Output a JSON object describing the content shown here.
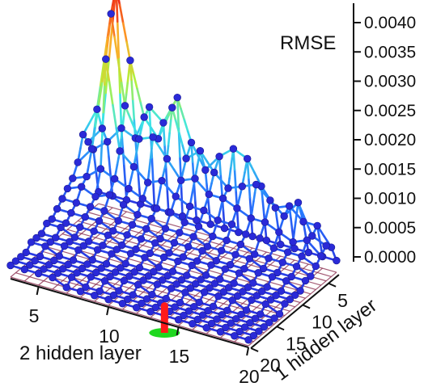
{
  "chart_data": {
    "type": "surface3d",
    "xlabel": "2 hidden layer",
    "ylabel": "1 hidden layer",
    "zlabel": "RMSE",
    "x_ticks": [
      "5",
      "10",
      "15",
      "20"
    ],
    "y_ticks": [
      "5",
      "10",
      "15",
      "20"
    ],
    "z_ticks": [
      "0.0000",
      "0.0005",
      "0.0010",
      "0.0015",
      "0.0020",
      "0.0025",
      "0.0030",
      "0.0035",
      "0.0040"
    ],
    "x_values": [
      3,
      4,
      5,
      6,
      7,
      8,
      9,
      10,
      11,
      12,
      13,
      14,
      15,
      16,
      17,
      18,
      19,
      20
    ],
    "y_values": [
      3,
      4,
      5,
      6,
      7,
      8,
      9,
      10,
      11,
      12,
      13,
      14,
      15,
      16,
      17,
      18,
      19,
      20
    ],
    "xlim": [
      3,
      20
    ],
    "ylim": [
      3,
      20
    ],
    "zlim": [
      0,
      0.004
    ],
    "rmse_grid": [
      [
        0.0002,
        0.0002,
        0.0002,
        0.0002,
        0.0002,
        0.0002,
        0.0002,
        0.0002,
        0.0002,
        0.0002,
        0.0002,
        0.0002,
        0.0002,
        0.0002,
        0.0002,
        0.0002,
        0.0002,
        0.0002
      ],
      [
        0.001,
        0.0012,
        0.0015,
        0.0014,
        0.002,
        0.0018,
        0.0023,
        0.0016,
        0.0012,
        0.0015,
        0.0017,
        0.0016,
        0.0012,
        0.0009,
        0.001,
        0.0008,
        0.0008,
        0.0005
      ],
      [
        0.0012,
        0.0015,
        0.004,
        0.0028,
        0.0019,
        0.0016,
        0.0022,
        0.0014,
        0.0016,
        0.0013,
        0.0011,
        0.0012,
        0.0013,
        0.0011,
        0.0009,
        0.0012,
        0.0007,
        0.0006
      ],
      [
        0.0014,
        0.0019,
        0.0036,
        0.0021,
        0.0016,
        0.0017,
        0.0014,
        0.0011,
        0.0012,
        0.001,
        0.001,
        0.0009,
        0.0008,
        0.0008,
        0.0007,
        0.0006,
        0.0007,
        0.0005
      ],
      [
        0.001,
        0.0013,
        0.0029,
        0.0014,
        0.0012,
        0.001,
        0.0011,
        0.0009,
        0.0008,
        0.0008,
        0.0007,
        0.0007,
        0.0006,
        0.0006,
        0.0005,
        0.0005,
        0.0005,
        0.0004
      ],
      [
        0.0008,
        0.0009,
        0.0011,
        0.001,
        0.0009,
        0.0008,
        0.0007,
        0.0007,
        0.0006,
        0.0006,
        0.0005,
        0.0005,
        0.0005,
        0.0004,
        0.0004,
        0.0004,
        0.0004,
        0.0003
      ],
      [
        0.0007,
        0.0008,
        0.0007,
        0.0008,
        0.0007,
        0.0006,
        0.0006,
        0.0005,
        0.0005,
        0.0005,
        0.0004,
        0.0004,
        0.0004,
        0.0004,
        0.0003,
        0.0003,
        0.0003,
        0.0003
      ],
      [
        0.0006,
        0.0006,
        0.0006,
        0.0006,
        0.0005,
        0.0005,
        0.0005,
        0.0004,
        0.0004,
        0.0004,
        0.0004,
        0.0003,
        0.0003,
        0.0003,
        0.0003,
        0.0003,
        0.0003,
        0.0002
      ],
      [
        0.0005,
        0.0005,
        0.0005,
        0.0005,
        0.0004,
        0.0004,
        0.0004,
        0.0004,
        0.0003,
        0.0003,
        0.0003,
        0.0003,
        0.0003,
        0.0003,
        0.0002,
        0.0002,
        0.0002,
        0.0002
      ],
      [
        0.0004,
        0.0004,
        0.0004,
        0.0004,
        0.0004,
        0.0003,
        0.0003,
        0.0003,
        0.0003,
        0.0003,
        0.0003,
        0.0002,
        0.0002,
        0.0002,
        0.0002,
        0.0002,
        0.0002,
        0.0002
      ],
      [
        0.0004,
        0.0004,
        0.0003,
        0.0003,
        0.0003,
        0.0003,
        0.0003,
        0.0003,
        0.0002,
        0.0002,
        0.0002,
        0.0002,
        0.0002,
        0.0002,
        0.0002,
        0.0002,
        0.0002,
        0.0002
      ],
      [
        0.0003,
        0.0003,
        0.0003,
        0.0003,
        0.0003,
        0.0003,
        0.0002,
        0.0002,
        0.0002,
        0.0002,
        0.0002,
        0.0002,
        0.0002,
        0.0002,
        0.0002,
        0.0002,
        0.0002,
        0.0001
      ],
      [
        0.0003,
        0.0003,
        0.0003,
        0.0003,
        0.0002,
        0.0002,
        0.0002,
        0.0002,
        0.0002,
        0.0002,
        0.0002,
        0.0002,
        0.0002,
        0.0002,
        0.0002,
        0.0001,
        0.0001,
        0.0001
      ],
      [
        0.0003,
        0.0003,
        0.0002,
        0.0002,
        0.0002,
        0.0002,
        0.0002,
        0.0002,
        0.0002,
        0.0002,
        0.0002,
        0.0002,
        0.0001,
        0.0001,
        0.0001,
        0.0001,
        0.0001,
        0.0001
      ],
      [
        0.0002,
        0.0002,
        0.0002,
        0.0002,
        0.0002,
        0.0002,
        0.0002,
        0.0002,
        0.0002,
        0.0001,
        0.0001,
        0.0001,
        0.0001,
        0.0001,
        0.0001,
        0.0001,
        0.0001,
        0.0001
      ],
      [
        0.0002,
        0.0002,
        0.0002,
        0.0002,
        0.0002,
        0.0002,
        0.0002,
        0.0001,
        0.0001,
        0.0001,
        0.0001,
        0.0001,
        0.0001,
        0.0001,
        0.0001,
        0.0001,
        0.0001,
        0.0001
      ],
      [
        0.0002,
        0.0002,
        0.0002,
        0.0002,
        0.0002,
        0.0001,
        0.0001,
        0.0001,
        0.0001,
        0.0001,
        0.0001,
        0.0001,
        0.0001,
        0.0001,
        0.0001,
        0.0001,
        0.0001,
        0.0001
      ],
      [
        0.0002,
        0.0002,
        0.0002,
        0.0002,
        0.0001,
        0.0001,
        0.0001,
        0.0001,
        0.0001,
        0.0001,
        0.0001,
        0.0001,
        0.0001,
        0.0001,
        0.0001,
        0.0001,
        0.0001,
        0.0001
      ]
    ],
    "highlight_point": {
      "x": 14,
      "y": 20
    },
    "colors": {
      "point": "#2a2ad8",
      "floor_grid": "#8b3050",
      "marker_red": "#ff1a1a",
      "marker_green": "#1fd81f",
      "axis": "#111111"
    }
  }
}
